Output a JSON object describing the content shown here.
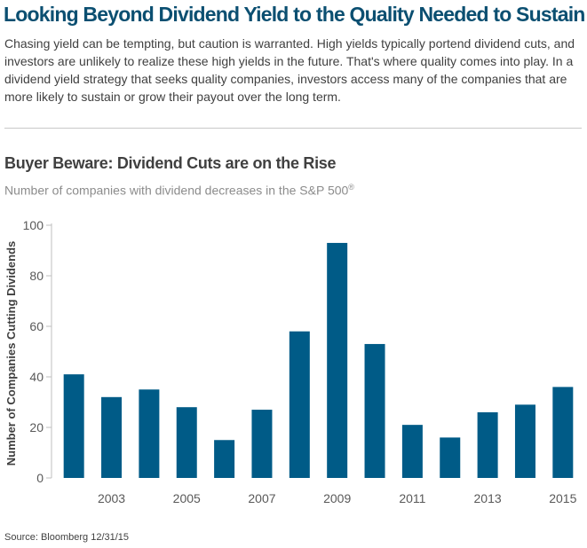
{
  "header": {
    "title": "Looking Beyond Dividend Yield to the Quality Needed to Sustain it",
    "intro": "Chasing yield can be tempting, but caution is warranted. High yields typically portend dividend cuts, and investors are unlikely to realize these high yields in the future. That's where quality comes into play. In a dividend yield strategy that seeks quality companies, investors access many of the companies that are more likely to sustain or grow their payout over the long term."
  },
  "chart_data": {
    "type": "bar",
    "title": "Buyer Beware: Dividend Cuts are on the Rise",
    "subtitle": "Number of companies with dividend decreases in the S&P 500",
    "subtitle_sup": "®",
    "xlabel": "",
    "ylabel": "Number of Companies Cutting Dividends",
    "categories": [
      "2002",
      "2003",
      "2004",
      "2005",
      "2006",
      "2007",
      "2008",
      "2009",
      "2010",
      "2011",
      "2012",
      "2013",
      "2014",
      "2015"
    ],
    "values": [
      41,
      32,
      35,
      28,
      15,
      27,
      58,
      93,
      53,
      21,
      16,
      26,
      29,
      36
    ],
    "x_tick_labels": [
      "2003",
      "2005",
      "2007",
      "2009",
      "2011",
      "2013",
      "2015"
    ],
    "y_ticks": [
      0,
      20,
      40,
      60,
      80,
      100
    ],
    "ylim": [
      0,
      100
    ],
    "bar_color": "#005b87",
    "grid": false,
    "legend": "none"
  },
  "footer": {
    "source": "Source: Bloomberg 12/31/15"
  }
}
